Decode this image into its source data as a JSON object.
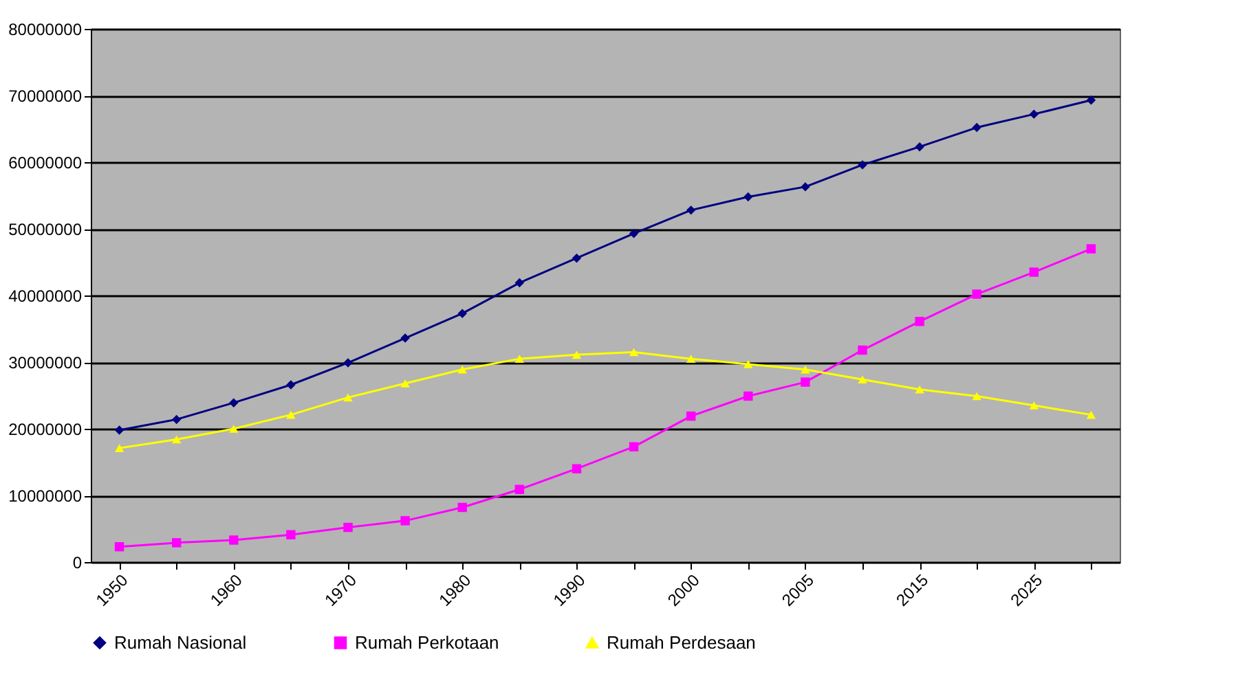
{
  "chart_data": {
    "type": "line",
    "categories": [
      "1950",
      null,
      "1960",
      null,
      "1970",
      null,
      "1980",
      null,
      "1990",
      null,
      "2000",
      null,
      "2005",
      null,
      "2015",
      null,
      "2025",
      null
    ],
    "series": [
      {
        "name": "Rumah Nasional",
        "color": "#000080",
        "marker": "diamond",
        "values": [
          19800000.0,
          21400000.0,
          23900000.0,
          26600000.0,
          29900000.0,
          33600000.0,
          37300000.0,
          41900000.0,
          45600000.0,
          49300000.0,
          52800000.0,
          54800000.0,
          56300000.0,
          59600000.0,
          62300000.0,
          65200000.0,
          67200000.0,
          69300000.0
        ]
      },
      {
        "name": "Rumah Perkotaan",
        "color": "#ff00ff",
        "marker": "square",
        "values": [
          2300000.0,
          2900000.0,
          3300000.0,
          4100000.0,
          5200000.0,
          6200000.0,
          8200000.0,
          10900000.0,
          14000000.0,
          17300000.0,
          21900000.0,
          24900000.0,
          27000000.0,
          31800000.0,
          36100000.0,
          40200000.0,
          43500000.0,
          47000000.0
        ]
      },
      {
        "name": "Rumah Perdesaan",
        "color": "#ffff00",
        "marker": "triangle",
        "values": [
          17100000.0,
          18400000.0,
          20000000.0,
          22100000.0,
          24700000.0,
          26800000.0,
          28900000.0,
          30500000.0,
          31100000.0,
          31500000.0,
          30500000.0,
          29700000.0,
          28900000.0,
          27400000.0,
          25900000.0,
          24900000.0,
          23500000.0,
          22100000.0
        ]
      }
    ],
    "ylim": [
      0,
      80000000
    ],
    "yticks": [
      0,
      10000000,
      20000000,
      30000000,
      40000000,
      50000000,
      60000000,
      70000000,
      80000000
    ],
    "grid": "y",
    "legend": "bottom",
    "line_style": "solid"
  }
}
